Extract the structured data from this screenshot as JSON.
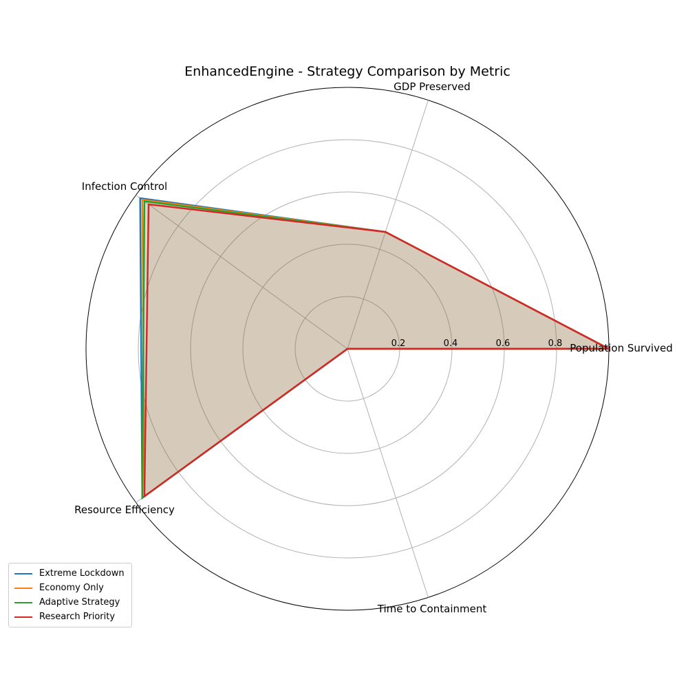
{
  "chart_data": {
    "type": "radar",
    "title": "EnhancedEngine - Strategy Comparison by Metric",
    "axes": [
      "Population Survived",
      "GDP Preserved",
      "Infection Control",
      "Resource Efficiency",
      "Time to Containment"
    ],
    "radial_ticks": [
      0.2,
      0.4,
      0.6,
      0.8
    ],
    "radial_tick_labels": [
      "0.2",
      "0.4",
      "0.6",
      "0.8"
    ],
    "rlim": [
      0,
      1.0
    ],
    "grid": true,
    "legend_position": "bottom-left",
    "series": [
      {
        "name": "Extreme Lockdown",
        "color": "#1f77b4",
        "values": [
          1.0,
          0.47,
          0.98,
          0.97,
          0.0
        ]
      },
      {
        "name": "Economy Only",
        "color": "#ff7f0e",
        "values": [
          1.0,
          0.47,
          0.97,
          0.96,
          0.0
        ]
      },
      {
        "name": "Adaptive Strategy",
        "color": "#2ca02c",
        "values": [
          1.0,
          0.47,
          0.96,
          0.97,
          0.0
        ]
      },
      {
        "name": "Research Priority",
        "color": "#d62728",
        "values": [
          1.0,
          0.47,
          0.94,
          0.96,
          0.0
        ]
      }
    ]
  }
}
